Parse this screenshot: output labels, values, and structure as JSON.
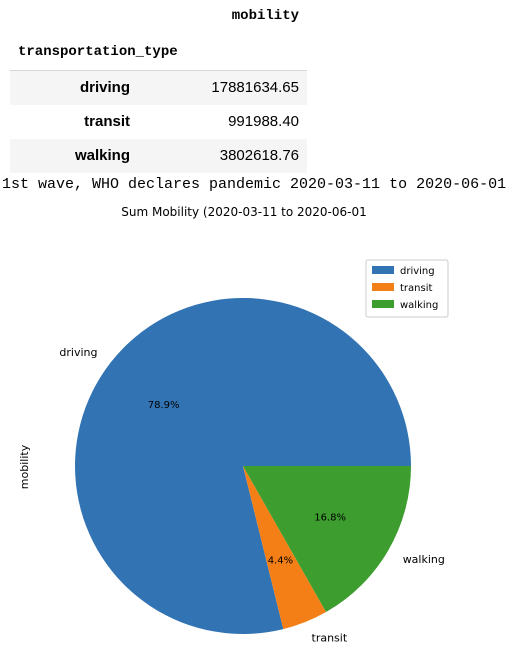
{
  "dataframe": {
    "column_header": "mobility",
    "index_header": "transportation_type",
    "rows": [
      {
        "index": "driving",
        "value": "17881634.65"
      },
      {
        "index": "transit",
        "value": "991988.40"
      },
      {
        "index": "walking",
        "value": "3802618.76"
      }
    ]
  },
  "output_line": "1st wave, WHO declares pandemic 2020-03-11 to 2020-06-01",
  "chart_data": {
    "type": "pie",
    "title": "Sum Mobility (2020-03-11 to 2020-06-01",
    "ylabel": "mobility",
    "categories": [
      "driving",
      "transit",
      "walking"
    ],
    "values": [
      17881634.65,
      991988.4,
      3802618.76
    ],
    "pct_labels": [
      "78.9%",
      "4.4%",
      "16.8%"
    ],
    "colors": [
      "#3274b3",
      "#f57f17",
      "#3d9e2f"
    ],
    "legend": {
      "position": "top-right",
      "entries": [
        "driving",
        "transit",
        "walking"
      ]
    }
  }
}
